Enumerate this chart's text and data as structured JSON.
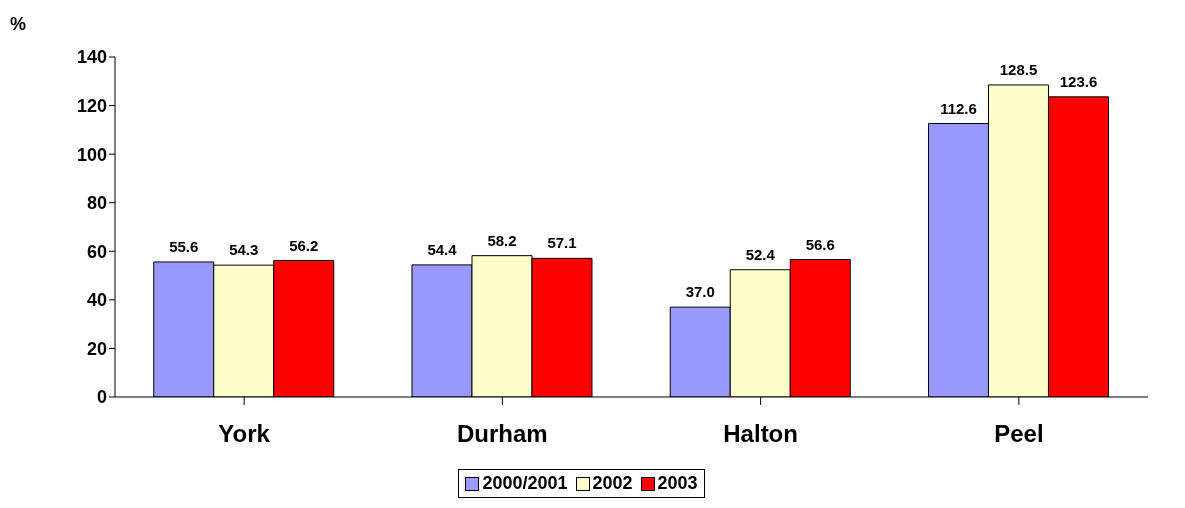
{
  "chart_data": {
    "type": "bar",
    "ylabel": "%",
    "categories": [
      "York",
      "Durham",
      "Halton",
      "Peel"
    ],
    "series": [
      {
        "name": "2000/2001",
        "color": "#9999ff",
        "values": [
          55.6,
          54.4,
          37.0,
          112.6
        ],
        "value_labels": [
          "55.6",
          "54.4",
          "37.0",
          "112.6"
        ]
      },
      {
        "name": "2002",
        "color": "#ffffcc",
        "values": [
          54.3,
          58.2,
          52.4,
          128.5
        ],
        "value_labels": [
          "54.3",
          "58.2",
          "52.4",
          "128.5"
        ]
      },
      {
        "name": "2003",
        "color": "#ff0000",
        "values": [
          56.2,
          57.1,
          56.6,
          123.6
        ],
        "value_labels": [
          "56.2",
          "57.1",
          "56.6",
          "123.6"
        ]
      }
    ],
    "ylim": [
      0,
      140
    ],
    "yticks": [
      0,
      20,
      40,
      60,
      80,
      100,
      120,
      140
    ],
    "grid": false,
    "legend": "bottom"
  }
}
